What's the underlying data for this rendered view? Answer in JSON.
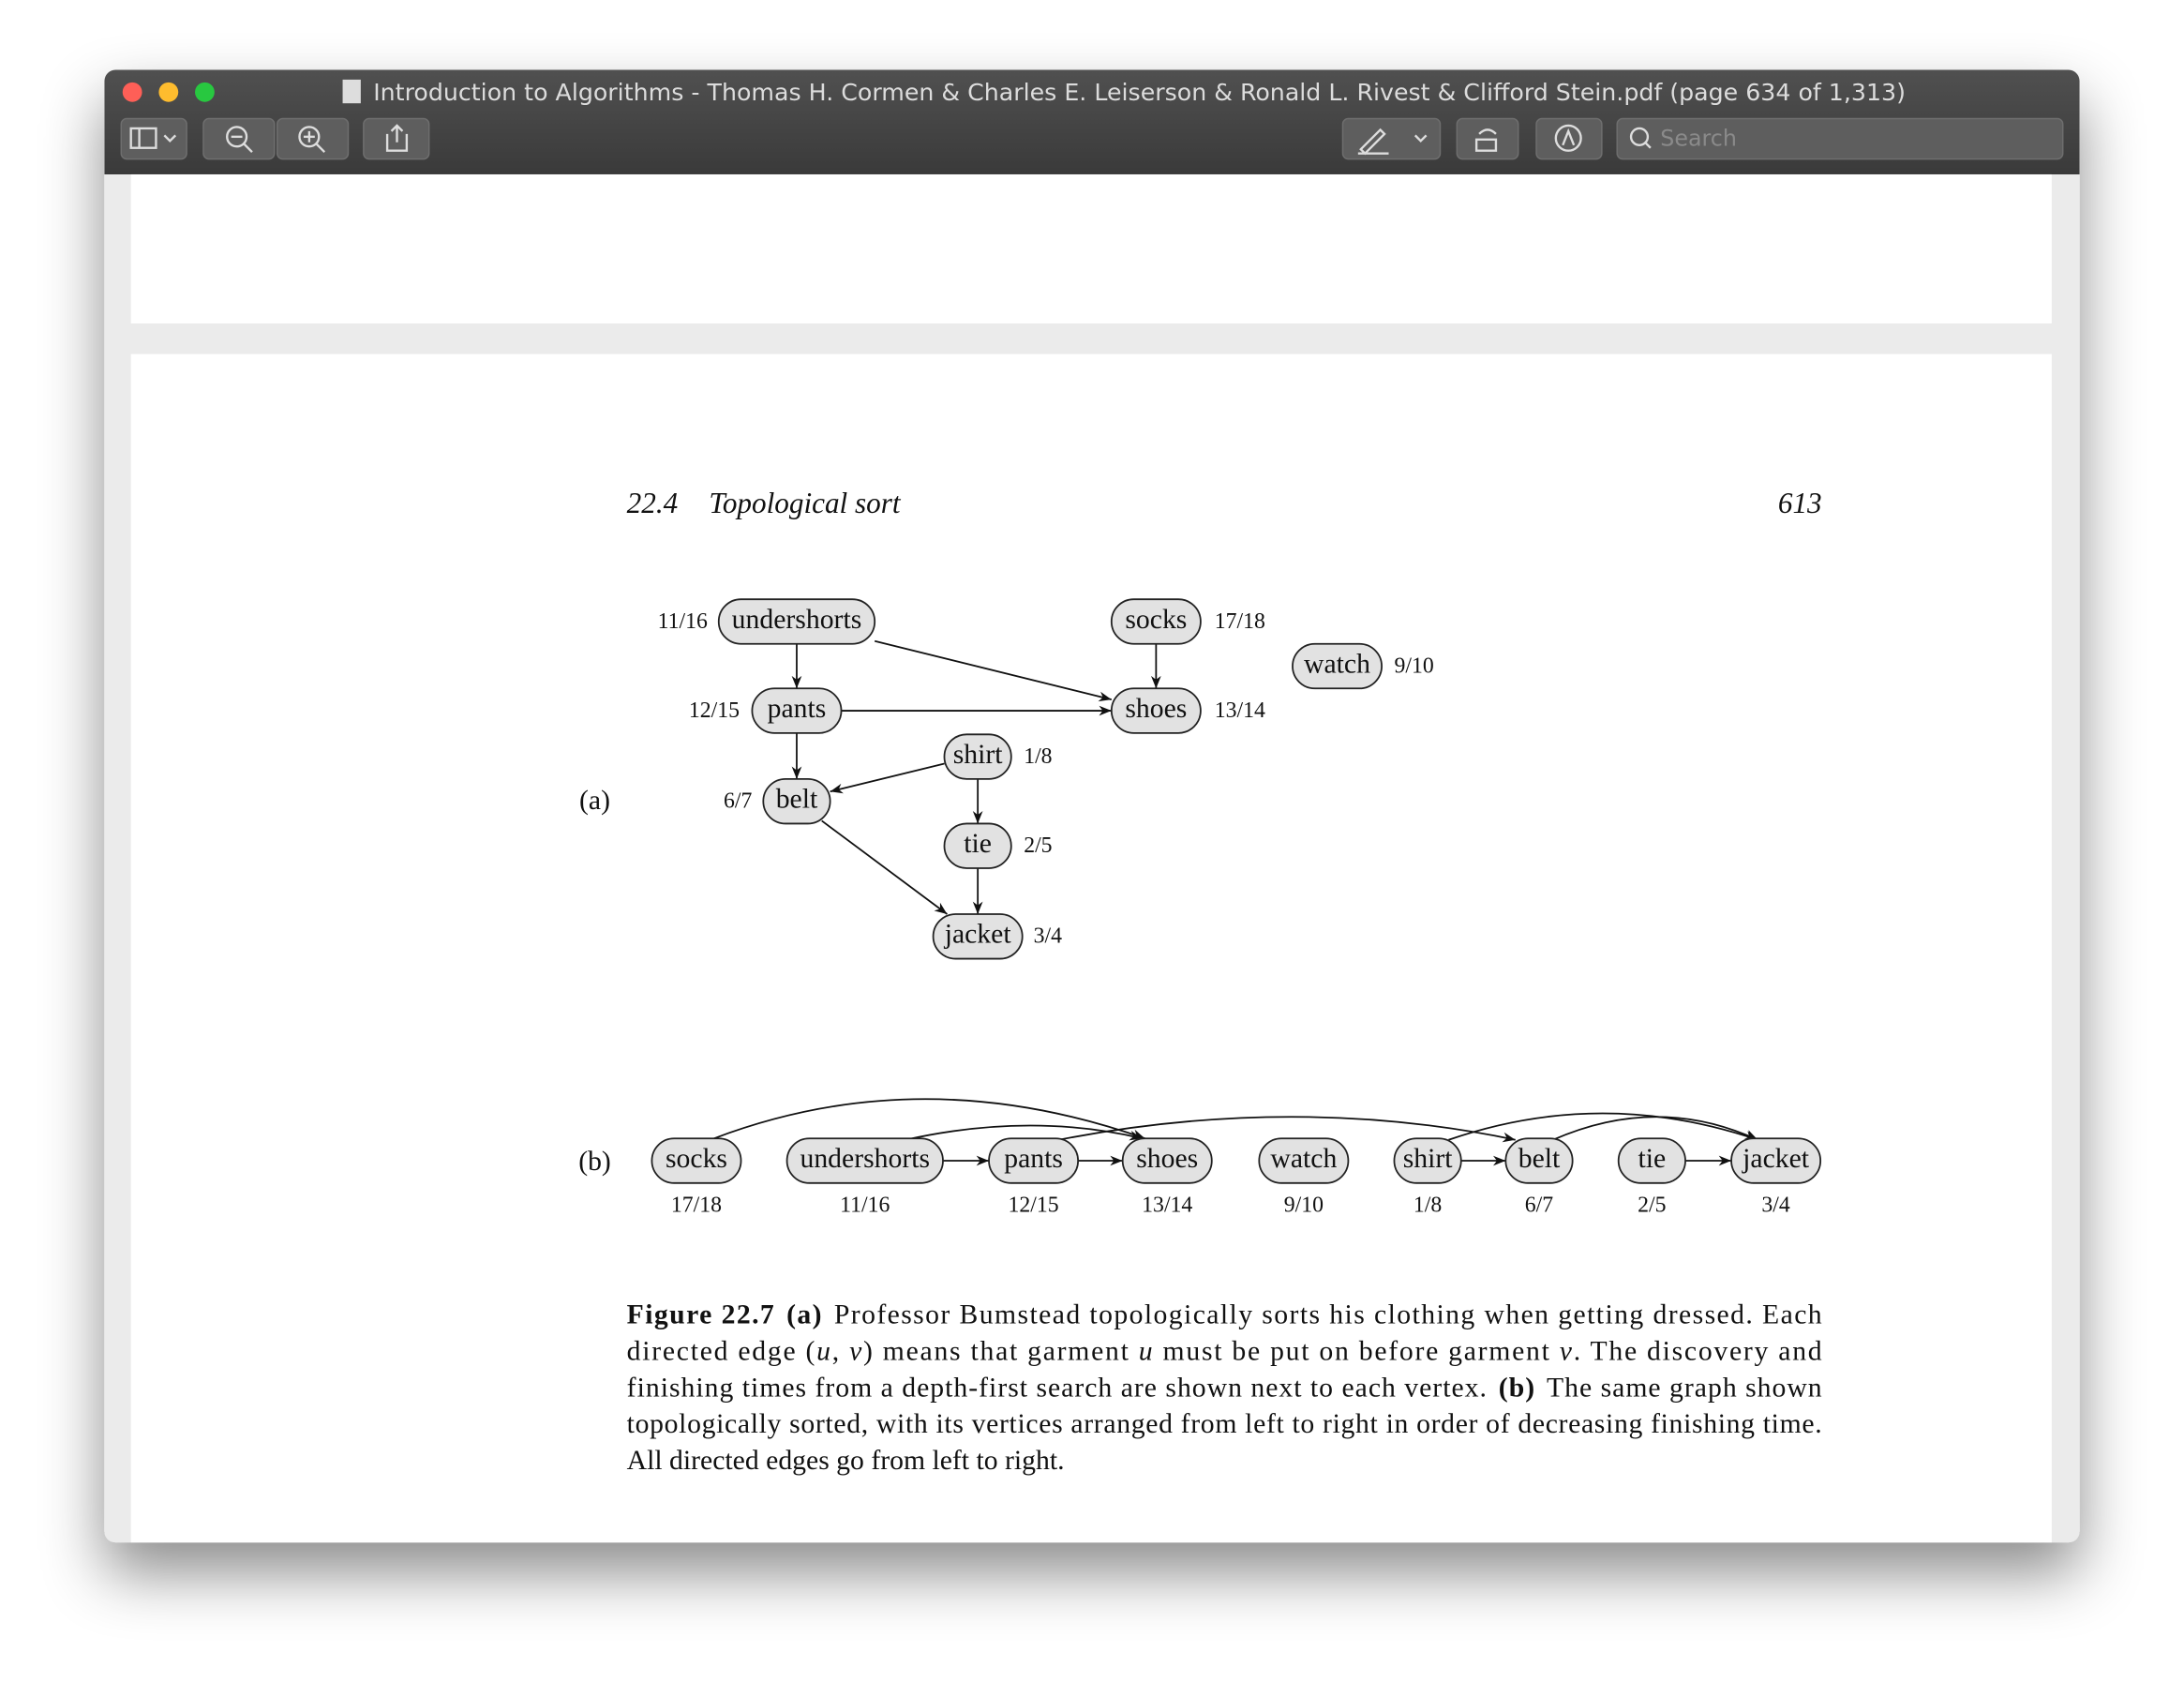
{
  "window": {
    "title": "Introduction to Algorithms - Thomas H. Cormen & Charles E. Leiserson & Ronald L. Rivest & Clifford Stein.pdf (page 634 of 1,313)",
    "search_placeholder": "Search"
  },
  "page": {
    "header": {
      "section": "22.4",
      "title": "Topological sort",
      "page_number": "613"
    },
    "figure": {
      "part_a": {
        "label": "(a)",
        "nodes": [
          {
            "label": "undershorts",
            "times": "11/16"
          },
          {
            "label": "socks",
            "times": "17/18"
          },
          {
            "label": "watch",
            "times": "9/10"
          },
          {
            "label": "pants",
            "times": "12/15"
          },
          {
            "label": "shoes",
            "times": "13/14"
          },
          {
            "label": "shirt",
            "times": "1/8"
          },
          {
            "label": "belt",
            "times": "6/7"
          },
          {
            "label": "tie",
            "times": "2/5"
          },
          {
            "label": "jacket",
            "times": "3/4"
          }
        ]
      },
      "part_b": {
        "label": "(b)",
        "nodes": [
          {
            "label": "socks",
            "times": "17/18"
          },
          {
            "label": "undershorts",
            "times": "11/16"
          },
          {
            "label": "pants",
            "times": "12/15"
          },
          {
            "label": "shoes",
            "times": "13/14"
          },
          {
            "label": "watch",
            "times": "9/10"
          },
          {
            "label": "shirt",
            "times": "1/8"
          },
          {
            "label": "belt",
            "times": "6/7"
          },
          {
            "label": "tie",
            "times": "2/5"
          },
          {
            "label": "jacket",
            "times": "3/4"
          }
        ]
      },
      "caption": {
        "lines": [
          [
            {
              "text": "Figure 22.7",
              "style": "bold"
            },
            {
              "text": "(a)",
              "style": "bold"
            },
            {
              "text": "Professor Bumstead topologically sorts his clothing when getting dressed. Each",
              "style": "roman"
            }
          ],
          [
            {
              "text": "directed edge (",
              "style": "roman"
            },
            {
              "text": "u",
              "style": "italic"
            },
            {
              "text": ", ",
              "style": "roman"
            },
            {
              "text": "v",
              "style": "italic"
            },
            {
              "text": ") means that garment ",
              "style": "roman"
            },
            {
              "text": "u",
              "style": "italic"
            },
            {
              "text": " must be put on before garment ",
              "style": "roman"
            },
            {
              "text": "v",
              "style": "italic"
            },
            {
              "text": ". The discovery and",
              "style": "roman"
            }
          ],
          [
            {
              "text": "finishing times from a depth-first search are shown next to each vertex.",
              "style": "roman"
            },
            {
              "text": "(b)",
              "style": "bold"
            },
            {
              "text": "The same graph shown",
              "style": "roman"
            }
          ],
          [
            {
              "text": "topologically sorted, with its vertices arranged from left to right in order of decreasing finishing time.",
              "style": "roman"
            }
          ],
          [
            {
              "text": "All directed edges go from left to right.",
              "style": "roman"
            }
          ]
        ]
      }
    }
  }
}
